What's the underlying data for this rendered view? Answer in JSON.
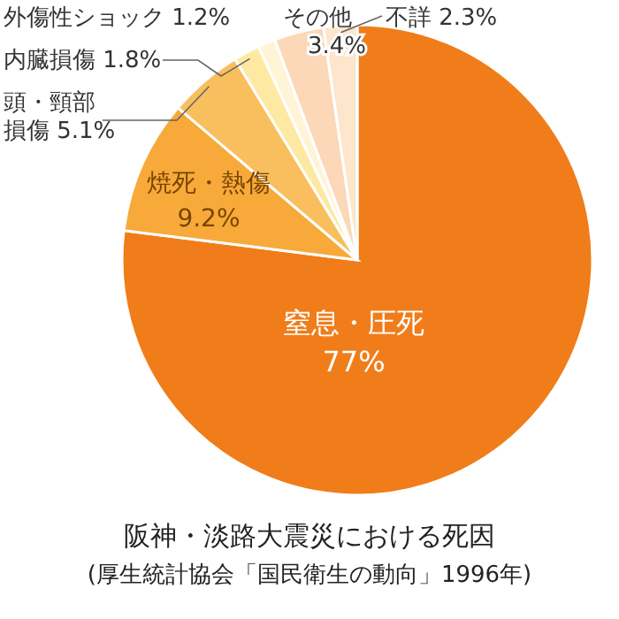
{
  "chart_data": {
    "type": "pie",
    "title": "阪神・淡路大震災における死因",
    "annotations": [
      "(厚生統計協会「国民衛生の動向」1996年)"
    ],
    "categories": [
      "窒息・圧死",
      "焼死・熱傷",
      "頭・頸部損傷",
      "内臓損傷",
      "外傷性ショック",
      "その他",
      "不詳"
    ],
    "values": [
      77,
      9.2,
      5.1,
      1.8,
      1.2,
      3.4,
      2.3
    ],
    "value_labels": [
      "77%",
      "9.2%",
      "5.1%",
      "1.8%",
      "1.2%",
      "3.4%",
      "2.3%"
    ],
    "colors": [
      "#f07d1a",
      "#f7aa3a",
      "#f9bf5e",
      "#fde9a2",
      "#fff4d6",
      "#fcd8b8",
      "#fde6cc"
    ],
    "legend": false
  }
}
